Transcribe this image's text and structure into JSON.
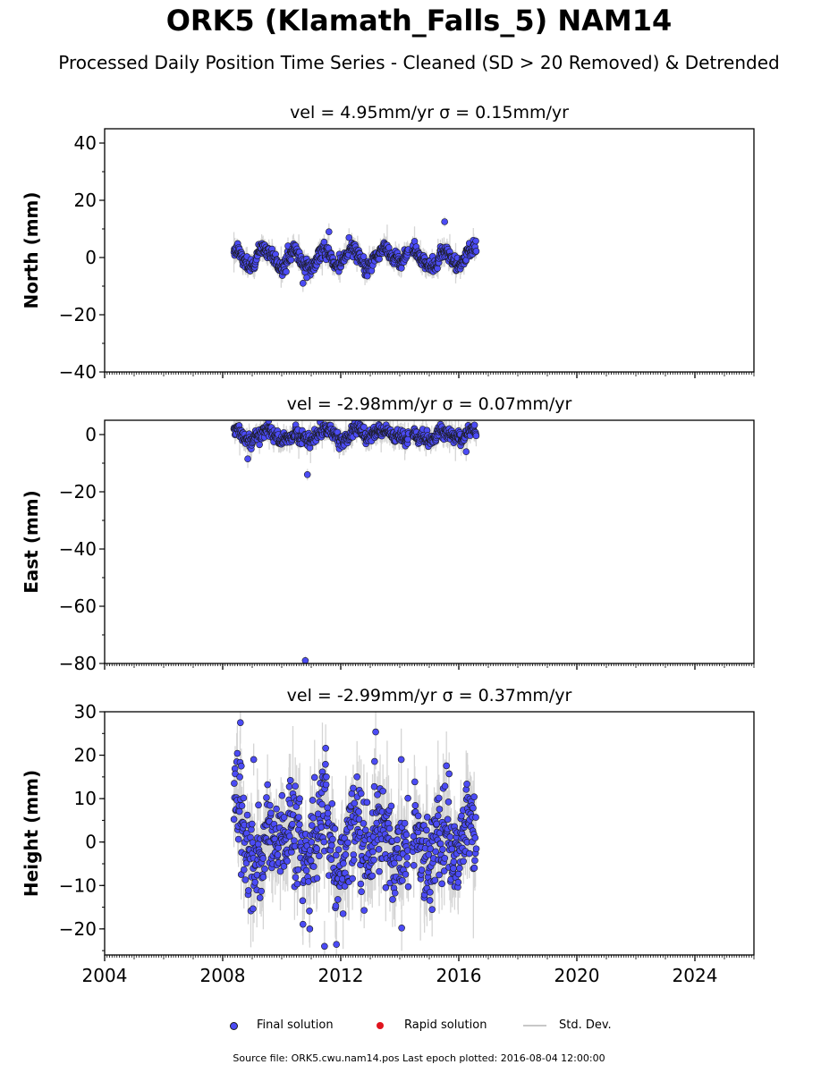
{
  "title": "ORK5 (Klamath_Falls_5) NAM14",
  "subtitle": "Processed Daily Position Time Series - Cleaned (SD > 20 Removed) & Detrended",
  "legend": {
    "final": "Final solution",
    "rapid": "Rapid solution",
    "std": "Std. Dev."
  },
  "footer": "Source file: ORK5.cwu.nam14.pos  Last epoch plotted: 2016-08-04 12:00:00",
  "colors": {
    "final_fill": "#4b4bf5",
    "final_edge": "#1a1a1a",
    "rapid": "#e0141e",
    "std_dev": "#c8c8c8"
  },
  "chart_data": [
    {
      "type": "scatter",
      "component": "north",
      "title": "vel = 4.95mm/yr   σ = 0.15mm/yr",
      "ylabel": "North (mm)",
      "xlim": [
        2004,
        2026
      ],
      "ylim": [
        -40,
        45
      ],
      "yticks": [
        -40,
        -20,
        0,
        20,
        40
      ],
      "ytick_labels": [
        "−40",
        "−20",
        "0",
        "20",
        "40"
      ],
      "xtick_labels": [
        "2004",
        "2008",
        "2012",
        "2016",
        "2020",
        "2024"
      ],
      "data_range": [
        2008.38,
        2016.59
      ],
      "seasonal_amplitude": 2.5,
      "noise": 1.2,
      "sigma": 2.5,
      "outliers": [
        {
          "x": 2010.72,
          "y": -9.0
        },
        {
          "x": 2010.85,
          "y": -7.0
        },
        {
          "x": 2015.52,
          "y": 12.5
        },
        {
          "x": 2011.6,
          "y": 9.0
        }
      ]
    },
    {
      "type": "scatter",
      "component": "east",
      "title": "vel = -2.98mm/yr   σ = 0.07mm/yr",
      "ylabel": "East (mm)",
      "xlim": [
        2004,
        2026
      ],
      "ylim": [
        -80,
        5
      ],
      "yticks": [
        -80,
        -60,
        -40,
        -20,
        0
      ],
      "ytick_labels": [
        "−80",
        "−60",
        "−40",
        "−20",
        "0"
      ],
      "xtick_labels": [
        "2004",
        "2008",
        "2012",
        "2016",
        "2020",
        "2024"
      ],
      "data_range": [
        2008.38,
        2016.59
      ],
      "seasonal_amplitude": 1.5,
      "noise": 1.1,
      "sigma": 2.5,
      "outliers": [
        {
          "x": 2010.8,
          "y": -79.0
        },
        {
          "x": 2010.87,
          "y": -14.0
        },
        {
          "x": 2008.85,
          "y": -8.5
        },
        {
          "x": 2016.25,
          "y": -6.0
        }
      ]
    },
    {
      "type": "scatter",
      "component": "height",
      "title": "vel = -2.99mm/yr   σ = 0.37mm/yr",
      "ylabel": "Height (mm)",
      "xlim": [
        2004,
        2026
      ],
      "ylim": [
        -26,
        30
      ],
      "yticks": [
        -20,
        -10,
        0,
        10,
        20,
        30
      ],
      "ytick_labels": [
        "−20",
        "−10",
        "0",
        "10",
        "20",
        "30"
      ],
      "xtick_labels": [
        "2004",
        "2008",
        "2012",
        "2016",
        "2020",
        "2024"
      ],
      "data_range": [
        2008.38,
        2016.59
      ],
      "seasonal_amplitude": 5.0,
      "noise": 5.0,
      "sigma": 6.0,
      "outliers": [
        {
          "x": 2008.6,
          "y": 27.5
        },
        {
          "x": 2008.63,
          "y": 17.5
        },
        {
          "x": 2011.45,
          "y": -24.0
        },
        {
          "x": 2010.95,
          "y": -20.0
        },
        {
          "x": 2009.05,
          "y": 19.0
        },
        {
          "x": 2014.05,
          "y": 19.0
        }
      ]
    }
  ]
}
